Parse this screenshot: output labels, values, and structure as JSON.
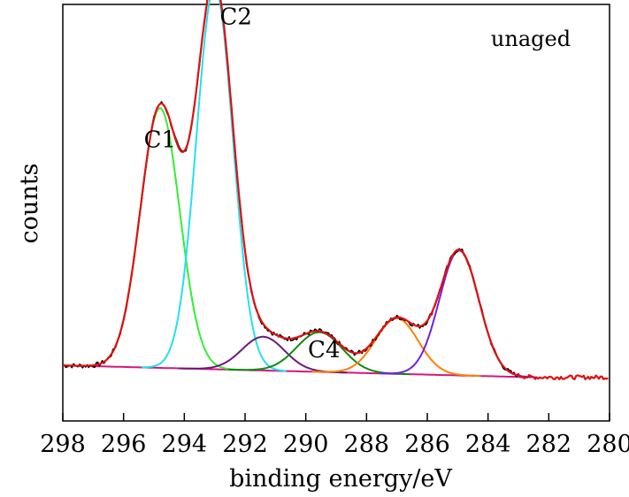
{
  "chart_data": {
    "type": "line",
    "title": "",
    "xlabel": "binding energy/eV",
    "ylabel": "counts",
    "xlim": [
      298,
      280
    ],
    "ylim": [
      0,
      1.05
    ],
    "x_reversed": true,
    "grid": false,
    "x_ticks": [
      298,
      296,
      294,
      292,
      290,
      288,
      286,
      284,
      282,
      280
    ],
    "x_tick_labels": [
      "298",
      "296",
      "294",
      "292",
      "290",
      "288",
      "286",
      "284",
      "282",
      "280"
    ],
    "legend_text": "unaged",
    "legend_placement": "top-right",
    "annotations": [
      {
        "text": "C1",
        "x": 294.8,
        "y": 0.69
      },
      {
        "text": "C2",
        "x": 292.3,
        "y": 1.0
      },
      {
        "text": "C4",
        "x": 289.4,
        "y": 0.16
      }
    ],
    "background": {
      "y_start": 0.14,
      "y_end": 0.11,
      "x_start": 298,
      "x_end": 282.5
    },
    "peaks": [
      {
        "center": 294.8,
        "height": 0.655,
        "sigma": 0.65,
        "color": "#33ee33"
      },
      {
        "center": 293.0,
        "height": 0.965,
        "sigma": 0.6,
        "color": "#22e0f0"
      },
      {
        "center": 291.4,
        "height": 0.085,
        "sigma": 0.7,
        "color": "#6a1a7a"
      },
      {
        "center": 289.55,
        "height": 0.1,
        "sigma": 0.75,
        "color": "#118811"
      },
      {
        "center": 287.0,
        "height": 0.14,
        "sigma": 0.7,
        "color": "#ff8000"
      },
      {
        "center": 284.95,
        "height": 0.315,
        "sigma": 0.65,
        "color": "#7020e0"
      }
    ],
    "series": [
      {
        "role": "raw",
        "color": "#000000",
        "x_range": [
          298,
          283.0
        ]
      },
      {
        "role": "fit",
        "color": "#e01010",
        "x_range": [
          298,
          280
        ]
      },
      {
        "role": "background",
        "color": "#d01880",
        "x_range": [
          298,
          282.5
        ]
      }
    ]
  }
}
